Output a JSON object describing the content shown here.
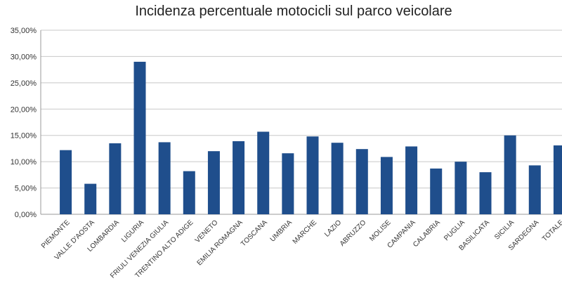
{
  "chart_data": {
    "type": "bar",
    "title": "Incidenza percentuale motocicli sul parco veicolare",
    "categories": [
      "PIEMONTE",
      "VALLE D'AOSTA",
      "LOMBARDIA",
      "LIGURIA",
      "FRIULI VENEZIA GIULIA",
      "TRENTINO ALTO ADIGE",
      "VENETO",
      "EMILIA ROMAGNA",
      "TOSCANA",
      "UMBRIA",
      "MARCHE",
      "LAZIO",
      "ABRUZZO",
      "MOLISE",
      "CAMPANIA",
      "CALABRIA",
      "PUGLIA",
      "BASILICATA",
      "SICILIA",
      "SARDEGNA",
      "TOTALE"
    ],
    "values": [
      12.2,
      5.8,
      13.5,
      29.0,
      13.7,
      8.2,
      12.0,
      13.9,
      15.7,
      11.6,
      14.8,
      13.6,
      12.4,
      10.9,
      12.9,
      8.7,
      10.0,
      8.0,
      15.0,
      9.3,
      13.1
    ],
    "ylim": [
      0,
      35
    ],
    "yticks": [
      "0,00%",
      "5,00%",
      "10,00%",
      "15,00%",
      "20,00%",
      "25,00%",
      "30,00%",
      "35,00%"
    ],
    "grid": true,
    "legend": "none",
    "bar_color": "#1f4e8c"
  }
}
